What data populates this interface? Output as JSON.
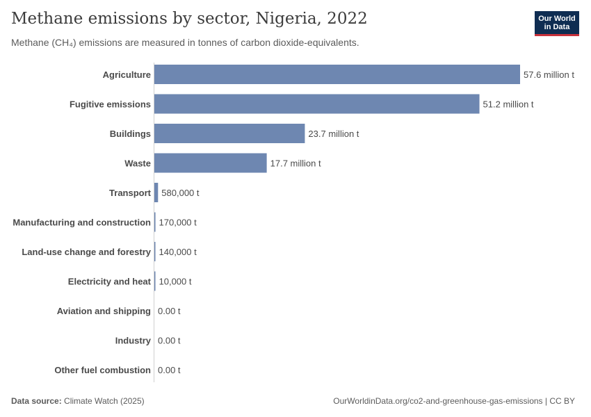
{
  "header": {
    "title": "Methane emissions by sector, Nigeria, 2022",
    "subtitle": "Methane (CH₄) emissions are measured in tonnes of carbon dioxide-equivalents."
  },
  "logo": {
    "line1": "Our World",
    "line2": "in Data",
    "bg_color": "#0f2d52",
    "accent_color": "#c8313b"
  },
  "footer": {
    "source_label": "Data source:",
    "source_value": "Climate Watch (2025)",
    "url_license": "OurWorldinData.org/co2-and-greenhouse-gas-emissions | CC BY"
  },
  "colors": {
    "bar": "#6e87b1",
    "axis": "#d0d0d0"
  },
  "chart_data": {
    "type": "bar",
    "orientation": "horizontal",
    "categories": [
      "Agriculture",
      "Fugitive emissions",
      "Buildings",
      "Waste",
      "Transport",
      "Manufacturing and construction",
      "Land-use change and forestry",
      "Electricity and heat",
      "Aviation and shipping",
      "Industry",
      "Other fuel combustion"
    ],
    "values": [
      57600000,
      51200000,
      23700000,
      17700000,
      580000,
      170000,
      140000,
      10000,
      0,
      0,
      0
    ],
    "value_labels": [
      "57.6 million t",
      "51.2 million t",
      "23.7 million t",
      "17.7 million t",
      "580,000 t",
      "170,000 t",
      "140,000 t",
      "10,000 t",
      "0.00 t",
      "0.00 t",
      "0.00 t"
    ],
    "title": "Methane emissions by sector, Nigeria, 2022",
    "xlabel": "",
    "ylabel": "",
    "xlim": [
      0,
      57600000
    ],
    "grid": false,
    "legend": "none"
  }
}
